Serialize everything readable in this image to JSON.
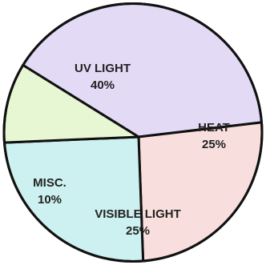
{
  "chart_data": {
    "type": "pie",
    "slices": [
      {
        "label": "UV LIGHT",
        "value": 40,
        "value_label": "40%",
        "color": "#e3daf6"
      },
      {
        "label": "HEAT",
        "value": 25,
        "value_label": "25%",
        "color": "#f8dedd"
      },
      {
        "label": "VISIBLE LIGHT",
        "value": 25,
        "value_label": "25%",
        "color": "#cdf1f0"
      },
      {
        "label": "MISC.",
        "value": 10,
        "value_label": "10%",
        "color": "#e7f6d3"
      }
    ],
    "slice_border_color": "#111111",
    "legend": "none"
  }
}
